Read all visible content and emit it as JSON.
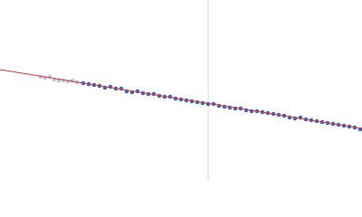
{
  "chart_data": {
    "type": "scatter",
    "xlim": [
      0,
      400
    ],
    "ylim": [
      0,
      200
    ],
    "vline": {
      "x": 230,
      "color": "#c8d4ec"
    },
    "fit": {
      "x": [
        0,
        400
      ],
      "values": [
        123,
        58
      ],
      "color": "#d83a3a"
    },
    "series": [
      {
        "color": "#b4c6e2",
        "x": [
          45,
          50,
          55,
          60,
          65,
          70,
          75,
          80,
          85
        ],
        "values": [
          115,
          114,
          115,
          112,
          111,
          111,
          110,
          111,
          109
        ]
      },
      {
        "color": "#3a68b8",
        "x": [
          92,
          98,
          104,
          110,
          116,
          122,
          128,
          134,
          140,
          146,
          152,
          158,
          164,
          170,
          176,
          182,
          188,
          194,
          200,
          206,
          212,
          218,
          224,
          230,
          236,
          242,
          248,
          254,
          260,
          266,
          272,
          278,
          284,
          290,
          296,
          302,
          308,
          314,
          320,
          326,
          332,
          338,
          344,
          350,
          356,
          362,
          368,
          374,
          380,
          386,
          392,
          398
        ],
        "values": [
          108,
          107,
          106,
          105,
          103,
          104,
          102,
          102,
          99,
          98,
          99,
          97,
          96,
          96,
          94,
          93,
          93,
          91,
          90,
          89,
          88,
          87,
          86,
          85,
          85,
          83,
          82,
          81,
          80,
          80,
          78,
          77,
          77,
          76,
          75,
          74,
          73,
          72,
          70,
          69,
          70,
          68,
          67,
          66,
          65,
          64,
          63,
          62,
          61,
          60,
          59,
          57
        ]
      }
    ]
  }
}
